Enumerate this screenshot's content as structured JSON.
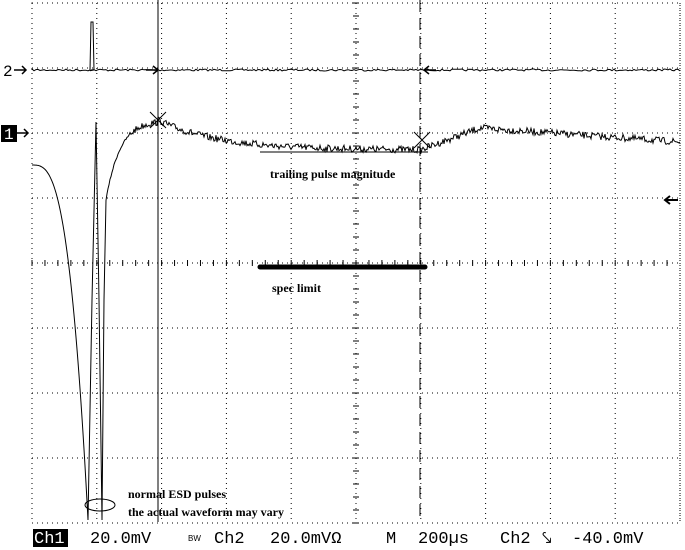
{
  "channels": [
    {
      "label": "2"
    },
    {
      "label": "1"
    }
  ],
  "annotations": {
    "trailing": "trailing pulse magnitude",
    "spec": "spec limit",
    "esd_line1": "normal ESD pulses",
    "esd_line2": "the actual waveform may vary"
  },
  "status_bar": {
    "ch1": "Ch1",
    "ch1_scale": "20.0mV",
    "bw": "BW",
    "ch2": "Ch2",
    "ch2_scale": "20.0mVΩ",
    "mode": "M",
    "timebase": "200µs",
    "trig_source": "Ch2",
    "trig_slope": "⤥",
    "trig_level": "-40.0mV"
  }
}
